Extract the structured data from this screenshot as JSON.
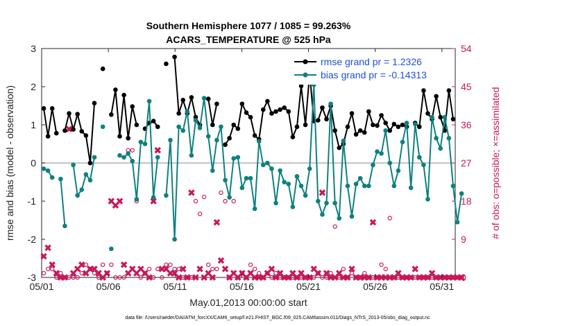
{
  "chart_data": {
    "type": "line",
    "title_line1": "Southern Hemisphere 1077 / 1085 = 99.263%",
    "title_line2": "ACARS_TEMPERATURE @ 525 hPa",
    "xlabel": "May.01,2013 00:00:00 start",
    "ylabel": "rmse and bias (model - observation)",
    "ylabel_right": "# of obs: o=possible; ×=assimilated",
    "footnote": "data file: /Users/raeder/DAI/ATM_forcXX/CAM6_setup/f.e21.FHIST_BGC.f09_025.CAM6assim.011/Diags_NTrS_2013-05/obs_diag_output.nc",
    "xlim": [
      0,
      31
    ],
    "ylim": [
      -3,
      3
    ],
    "ylim_right": [
      0,
      54
    ],
    "x_ticks": [
      {
        "value": 0,
        "label": "05/01"
      },
      {
        "value": 5,
        "label": "05/06"
      },
      {
        "value": 10,
        "label": "05/11"
      },
      {
        "value": 15,
        "label": "05/16"
      },
      {
        "value": 20,
        "label": "05/21"
      },
      {
        "value": 25,
        "label": "05/26"
      },
      {
        "value": 30,
        "label": "05/31"
      }
    ],
    "y_ticks": [
      "-3",
      "-2",
      "-1",
      "0",
      "1",
      "2",
      "3"
    ],
    "y_ticks_right": [
      "0",
      "9",
      "18",
      "27",
      "36",
      "45",
      "54"
    ],
    "zero_line": 0,
    "series": [
      {
        "name": "rmse grand pr = 1.2326",
        "color": "#000000",
        "values": [
          1.43,
          0.7,
          1.43,
          0.78,
          null,
          0.85,
          1.3,
          0.88,
          1.28,
          0.83,
          0.72,
          0.0,
          1.57,
          null,
          2.47,
          null,
          1.27,
          1.92,
          0.7,
          1.78,
          0.65,
          1.48,
          1.0,
          null,
          0.9,
          1.05,
          1.1,
          0.95,
          null,
          2.6,
          null,
          2.78,
          1.3,
          1.65,
          1.3,
          1.72,
          1.2,
          1.0,
          null,
          1.68,
          1.0,
          1.55,
          null,
          0.48,
          0.65,
          1.0,
          0.9,
          1.55,
          1.32,
          1.2,
          0.72,
          0.62,
          1.4,
          1.62,
          1.3,
          1.35,
          1.4,
          1.45,
          1.35,
          0.68,
          0.95,
          2.02,
          1.0,
          2.35,
          1.1,
          1.12,
          1.45,
          1.15,
          1.5,
          0.85,
          0.4,
          0.5,
          0.95,
          1.3,
          0.75,
          0.85,
          0.8,
          1.35,
          1.0,
          0.98,
          1.25,
          1.05,
          0.85,
          1.02,
          0.95,
          1.0,
          0.95,
          null,
          1.05,
          0.95,
          1.9,
          1.3,
          1.15,
          1.75,
          1.2,
          0.85,
          1.9,
          1.15
        ]
      },
      {
        "name": "bias grand pr = -0.14313",
        "color": "#0e8080",
        "values": [
          -0.15,
          -0.2,
          -0.38,
          null,
          -0.42,
          -1.65,
          null,
          -0.05,
          -0.85,
          -0.7,
          -0.3,
          -0.45,
          0.15,
          null,
          0.95,
          null,
          -2.25,
          null,
          0.2,
          0.15,
          0.25,
          0.05,
          -0.95,
          0.55,
          0.5,
          1.62,
          -0.9,
          0.15,
          null,
          -0.85,
          0.6,
          -2.0,
          0.95,
          0.85,
          1.35,
          0.2,
          1.12,
          0.92,
          1.7,
          0.7,
          -0.2,
          0.6,
          0.95,
          -0.45,
          -0.9,
          0.12,
          0.15,
          -0.65,
          -0.4,
          -0.4,
          -1.2,
          0.57,
          -0.05,
          0.0,
          -0.15,
          -1.05,
          -0.2,
          -0.5,
          -0.55,
          -1.15,
          -0.35,
          -0.6,
          -0.85,
          -0.15,
          2.05,
          -1.0,
          -1.35,
          -1.05,
          1.55,
          -1.05,
          -1.45,
          0.58,
          -0.6,
          -1.4,
          -0.55,
          -0.4,
          -0.6,
          -0.6,
          -0.05,
          0.3,
          0.25,
          0.85,
          0.0,
          -0.6,
          -0.2,
          0.55,
          1.05,
          -0.65,
          1.02,
          0.15,
          -0.05,
          -0.95,
          1.2,
          0.65,
          0.38,
          1.2,
          0.65,
          -0.6,
          -1.55,
          -0.8
        ]
      },
      {
        "name": "obs possible",
        "color": "#c8185a",
        "values": [
          1,
          2,
          2,
          0,
          1,
          0,
          0,
          0,
          0,
          1,
          3,
          2,
          1,
          0,
          3,
          1,
          3,
          0,
          0,
          0,
          30,
          30,
          18,
          0,
          1,
          2,
          0,
          2,
          0,
          3,
          3,
          2,
          2,
          0,
          0,
          0,
          18,
          15,
          19,
          3,
          2,
          2,
          20,
          18,
          0,
          18,
          0,
          1,
          0,
          3,
          2,
          1,
          0,
          1,
          0,
          1,
          0,
          0,
          0,
          0,
          0,
          0,
          0,
          0,
          0,
          1,
          0,
          0,
          1,
          12,
          0,
          2,
          0,
          1,
          0,
          0,
          1,
          0,
          0,
          0,
          3,
          2,
          14,
          0,
          0,
          0,
          0,
          0,
          0,
          0,
          0,
          0,
          0,
          0,
          0,
          0,
          0,
          0,
          0,
          0
        ]
      },
      {
        "name": "obs assimilated",
        "color": "#c8185a",
        "values": [
          5,
          7,
          3,
          1,
          0,
          0,
          35,
          1,
          2,
          3,
          1,
          2,
          2,
          1,
          0,
          1,
          18,
          17,
          18,
          3,
          1,
          2,
          1,
          2,
          1,
          0,
          18,
          30,
          2,
          2,
          1,
          1,
          0,
          2,
          0,
          20,
          0,
          2,
          0,
          1,
          0,
          13,
          4,
          2,
          0,
          1,
          0,
          1,
          0,
          1,
          0,
          0,
          0,
          1,
          2,
          0,
          1,
          0,
          0,
          1,
          0,
          1,
          0,
          0,
          2,
          1,
          20,
          1,
          0,
          0,
          1,
          0,
          0,
          2,
          0,
          0,
          0,
          0,
          13,
          0,
          0,
          0,
          0,
          0,
          1,
          0,
          0,
          0,
          2,
          0,
          0,
          0,
          1,
          0,
          0,
          0,
          0,
          0,
          0,
          0
        ]
      }
    ],
    "legend_position": "top-right"
  },
  "colors": {
    "rmse": "#000000",
    "bias": "#0e8080",
    "obs": "#c8185a",
    "legend_text": "#1f4fd6",
    "zero_line": "#b0b0b0"
  }
}
